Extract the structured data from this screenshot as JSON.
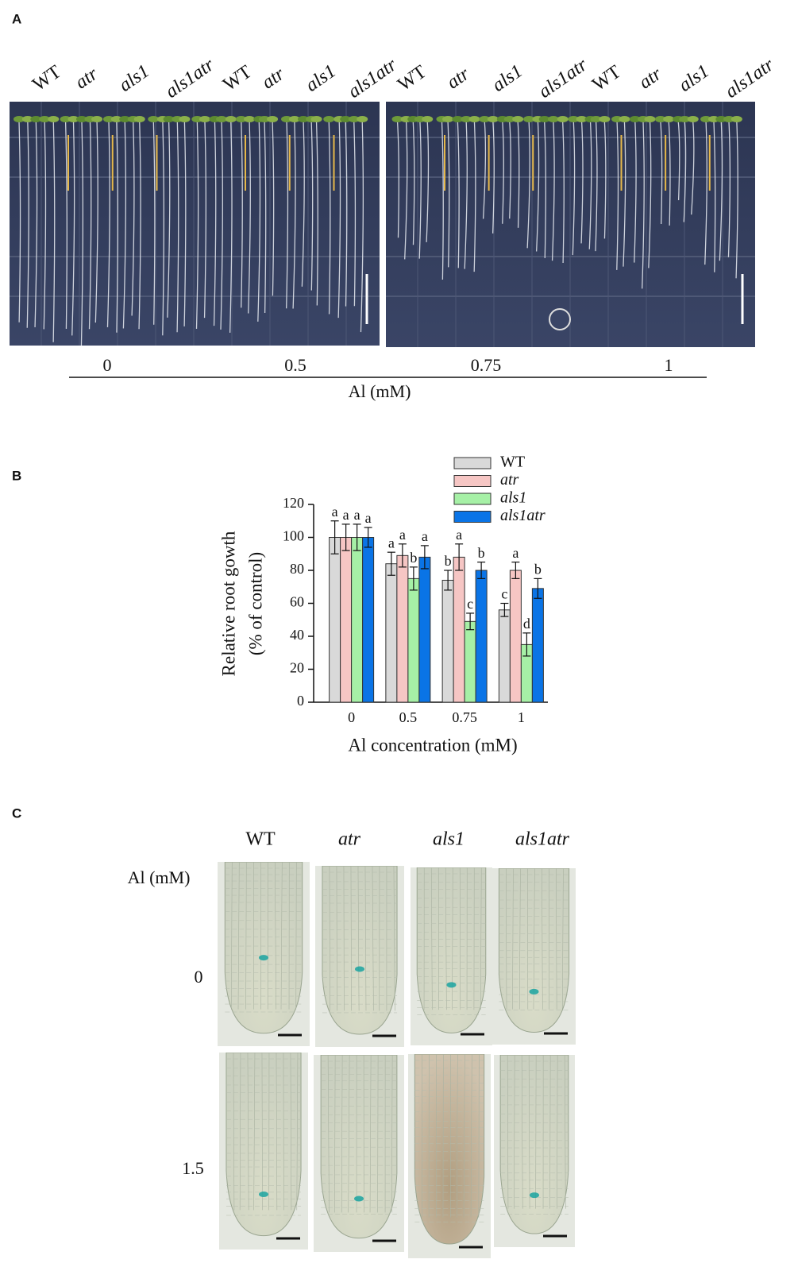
{
  "panel_a": {
    "label": "A",
    "genotypes": [
      "WT",
      "atr",
      "als1",
      "als1atr"
    ],
    "concentrations": [
      "0",
      "0.5",
      "0.75",
      "1"
    ],
    "axis_label": "Al (mM)"
  },
  "chart_data": {
    "type": "bar",
    "label": "B",
    "ylabel": [
      "Relative root gowth",
      "(% of control)"
    ],
    "xlabel": "Al concentration (mM)",
    "categories": [
      "0",
      "0.5",
      "0.75",
      "1"
    ],
    "series": [
      {
        "name": "WT",
        "color": "#d9d9d9",
        "values": [
          100,
          84,
          74,
          56
        ],
        "errors": [
          10,
          7,
          6,
          4
        ],
        "letters": [
          "a",
          "a",
          "b",
          "c"
        ]
      },
      {
        "name": "atr",
        "color": "#f6c6c4",
        "values": [
          100,
          89,
          88,
          80
        ],
        "errors": [
          8,
          7,
          8,
          5
        ],
        "letters": [
          "a",
          "a",
          "a",
          "a"
        ]
      },
      {
        "name": "als1",
        "color": "#a6f0a6",
        "values": [
          100,
          75,
          49,
          35
        ],
        "errors": [
          8,
          7,
          5,
          7
        ],
        "letters": [
          "a",
          "b",
          "c",
          "d"
        ]
      },
      {
        "name": "als1atr",
        "color": "#0a74e6",
        "values": [
          100,
          88,
          80,
          69
        ],
        "errors": [
          6,
          7,
          5,
          6
        ],
        "letters": [
          "a",
          "a",
          "b",
          "b"
        ]
      }
    ],
    "ylim": [
      0,
      120
    ],
    "yticks": [
      0,
      20,
      40,
      60,
      80,
      100,
      120
    ],
    "grid": false,
    "legend": "top-right"
  },
  "panel_c": {
    "label": "C",
    "genotypes": [
      "WT",
      "atr",
      "als1",
      "als1atr"
    ],
    "row_title": "Al (mM)",
    "rows": [
      "0",
      "1.5"
    ]
  }
}
